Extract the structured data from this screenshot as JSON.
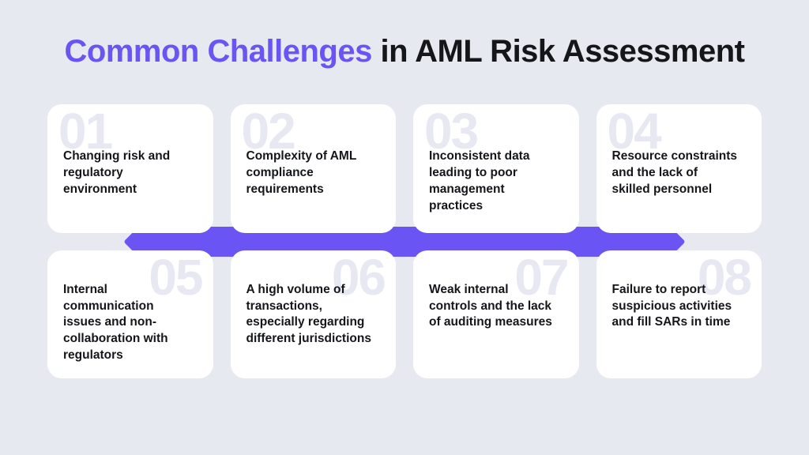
{
  "colors": {
    "background": "#e7e9f0",
    "card_bg": "#ffffff",
    "title_accent": "#6b54f4",
    "title_rest": "#15161a",
    "number_ghost": "#e7e8f1",
    "body_text": "#15161a",
    "connector": "#6b54f4",
    "vline": "#d7d9e3"
  },
  "title": {
    "accent": "Common Challenges",
    "rest": " in AML Risk Assessment"
  },
  "cards": [
    {
      "num": "01",
      "text": "Changing risk and regulatory environment"
    },
    {
      "num": "02",
      "text": "Complexity of AML compliance requirements"
    },
    {
      "num": "03",
      "text": "Inconsistent data leading to poor management practices"
    },
    {
      "num": "04",
      "text": "Resource constraints and the lack of skilled personnel"
    },
    {
      "num": "05",
      "text": "Internal communication issues and non-collaboration with regulators"
    },
    {
      "num": "06",
      "text": "A high volume of transactions, especially regarding different jurisdictions"
    },
    {
      "num": "07",
      "text": "Weak internal controls and the lack of auditing measures"
    },
    {
      "num": "08",
      "text": "Failure to report suspicious activities and fill SARs in time"
    }
  ],
  "layout": {
    "vline_positions_pct": [
      12.5,
      37.5,
      62.5,
      87.5
    ]
  }
}
